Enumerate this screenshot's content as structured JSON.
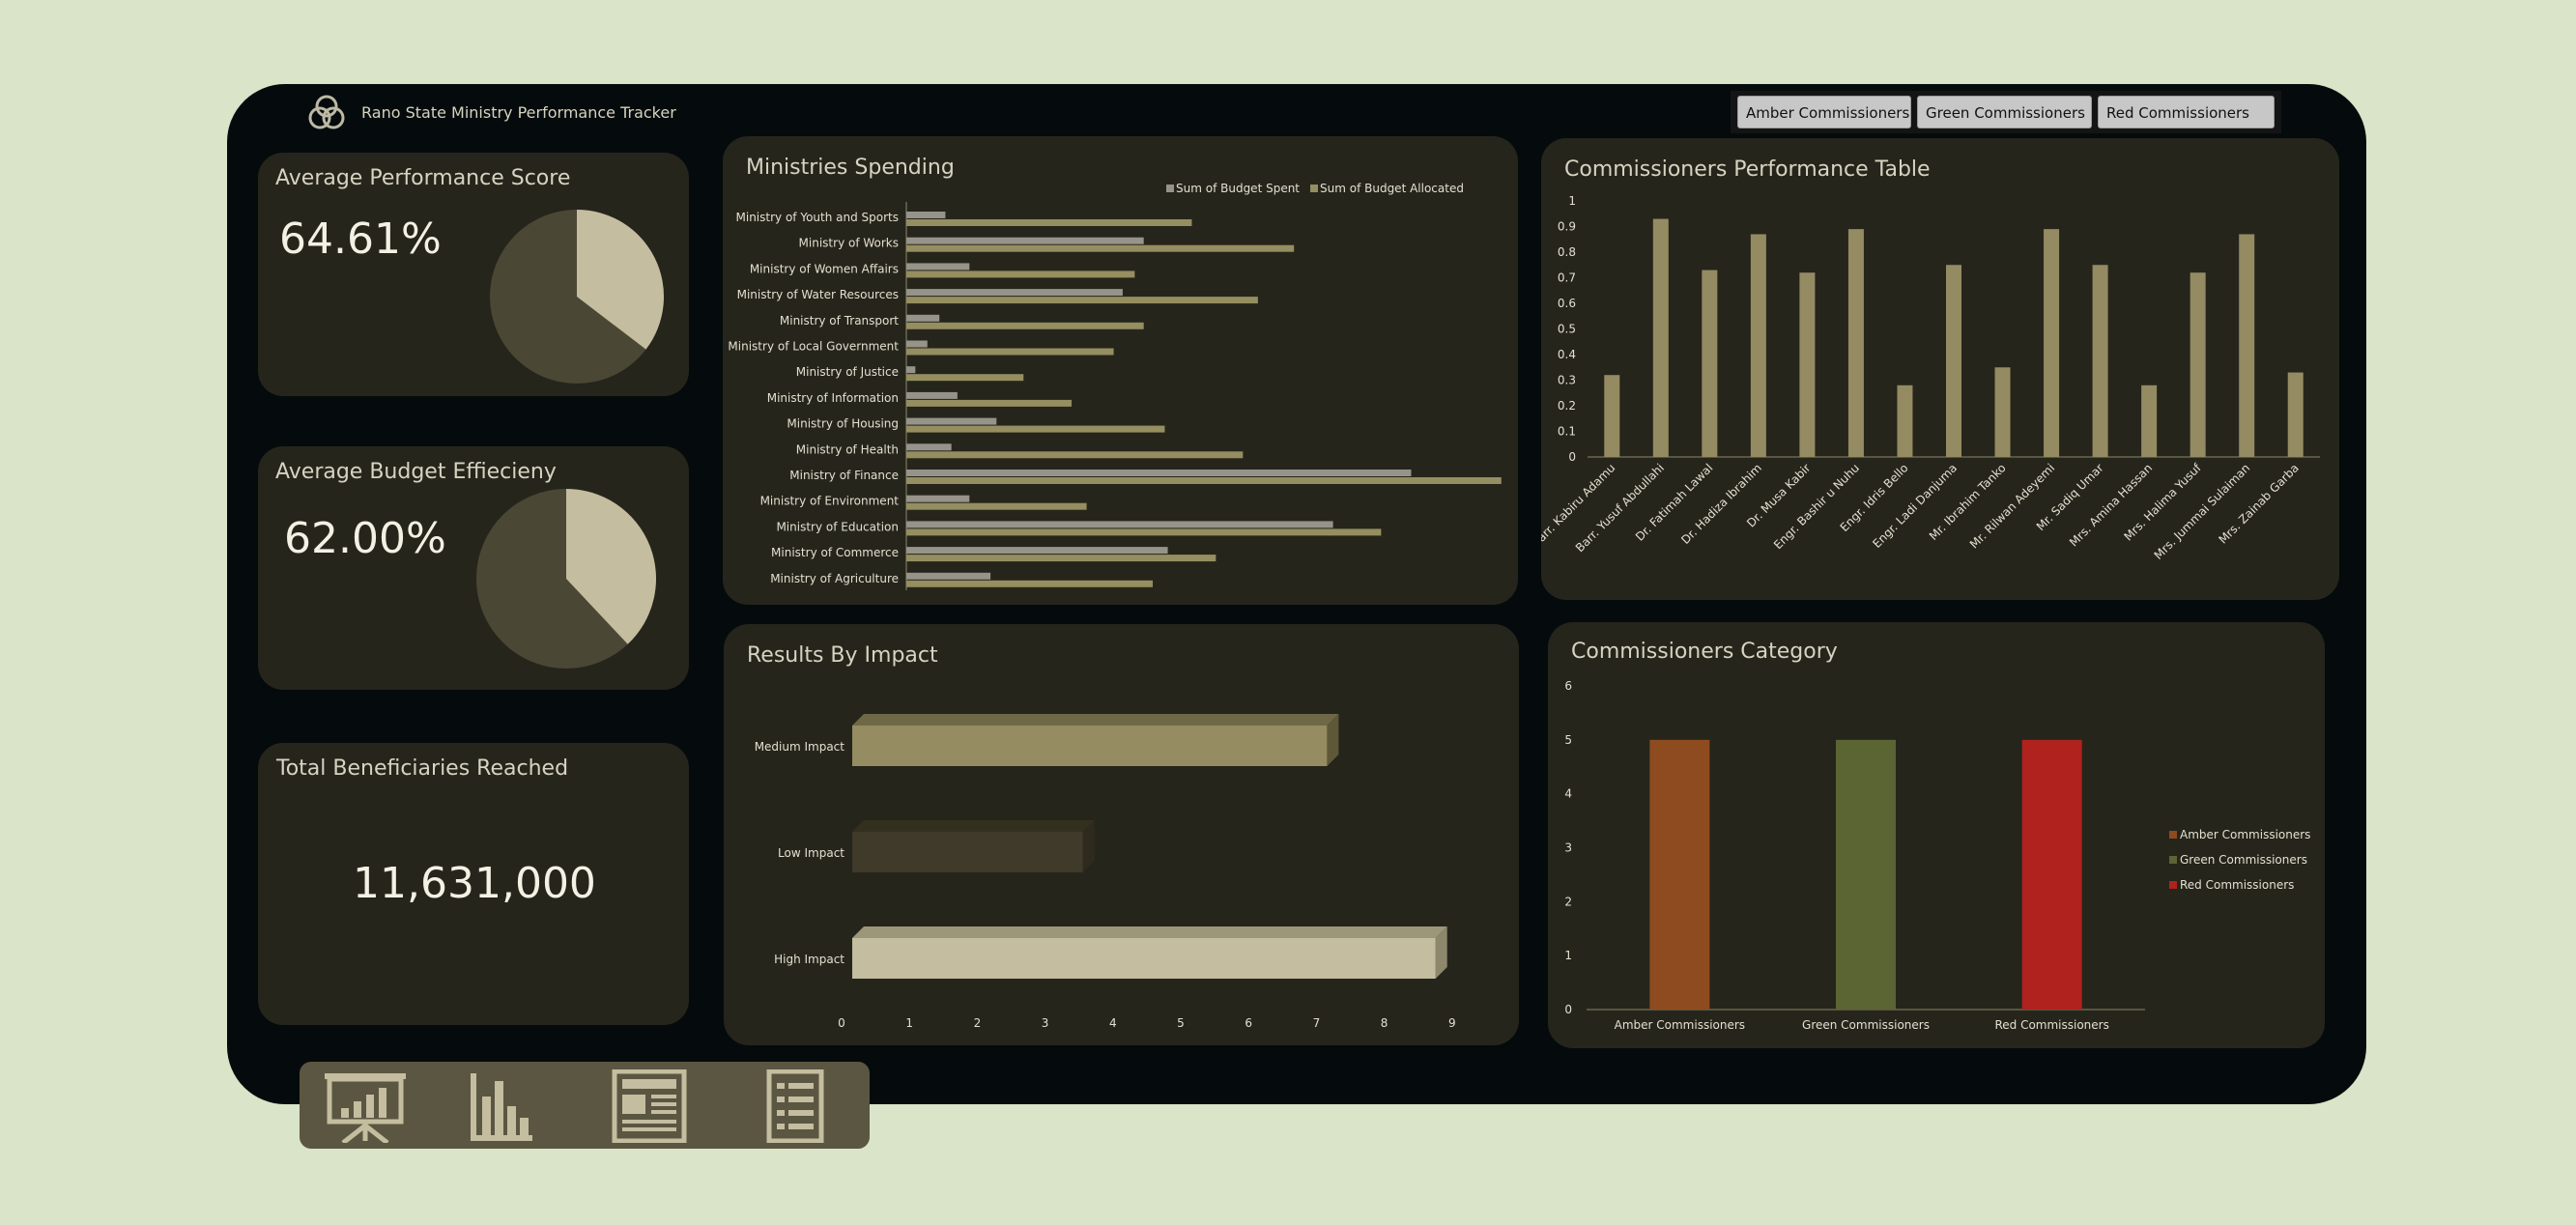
{
  "app": {
    "title": "Rano State Ministry Performance Tracker",
    "logo_icon": "three-circles-logo-icon"
  },
  "slicers": [
    {
      "label": "Amber  Commissioners"
    },
    {
      "label": "Green Commissioners"
    },
    {
      "label": "Red  Commissioners"
    }
  ],
  "kpis": {
    "performance": {
      "title": "Average Performance Score",
      "value": "64.61%",
      "fraction": 0.6461
    },
    "budget": {
      "title": "Average Budget Effiecieny",
      "value": "62.00%",
      "fraction": 0.62
    },
    "beneficiaries": {
      "title": "Total Beneficiaries Reached",
      "value": "11,631,000"
    }
  },
  "colors": {
    "pie_main": "#4b4735",
    "pie_slice": "#c4bd9f",
    "spent": "#96938a",
    "allocated": "#958e60",
    "medium": "#958c61",
    "low": "#3f3a2a",
    "high": "#c4bd9f",
    "amber": "#8e4b1f",
    "green": "#5b6433",
    "red": "#b0221d",
    "perf_bar": "#948b62"
  },
  "nav": {
    "icons": [
      "presentation-chart-icon",
      "bar-chart-icon",
      "newspaper-icon",
      "list-document-icon"
    ]
  },
  "chart_data": [
    {
      "id": "ministries_spending",
      "type": "bar",
      "orientation": "horizontal",
      "title": "Ministries Spending",
      "categories": [
        "Ministry of Youth and Sports",
        "Ministry of Works",
        "Ministry of Women Affairs",
        "Ministry of Water Resources",
        "Ministry of Transport",
        "Ministry of Local Government",
        "Ministry of Justice",
        "Ministry of Information",
        "Ministry of Housing",
        "Ministry of Health",
        "Ministry of Finance",
        "Ministry of Environment",
        "Ministry of Education",
        "Ministry of Commerce",
        "Ministry of Agriculture"
      ],
      "series": [
        {
          "name": "Sum of Budget Spent",
          "values": [
            0.65,
            3.95,
            1.05,
            3.6,
            0.55,
            0.35,
            0.15,
            0.85,
            1.5,
            0.75,
            8.4,
            1.05,
            7.1,
            4.35,
            1.4
          ]
        },
        {
          "name": "Sum of Budget Allocated",
          "values": [
            4.75,
            6.45,
            3.8,
            5.85,
            3.95,
            3.45,
            1.95,
            2.75,
            4.3,
            5.6,
            9.9,
            3.0,
            7.9,
            5.15,
            4.1
          ]
        }
      ],
      "legend": "top-right",
      "xlim": [
        0,
        10
      ]
    },
    {
      "id": "commissioners_performance",
      "type": "bar",
      "title": "Commissioners Performance Table",
      "categories": [
        "Barr. Kabiru Adamu",
        "Barr. Yusuf Abdullahi",
        "Dr. Fatimah Lawal",
        "Dr. Hadiza Ibrahim",
        "Dr. Musa Kabir",
        "Engr. Bashir u Nuhu",
        "Engr. Idris Bello",
        "Engr. Ladi Danjuma",
        "Mr. Ibrahim Tanko",
        "Mr. Rilwan Adeyemi",
        "Mr. Sadiq Umar",
        "Mrs. Amina Hassan",
        "Mrs. Halima Yusuf",
        "Mrs. Jummai Sulaiman",
        "Mrs. Zainab Garba"
      ],
      "values": [
        0.32,
        0.93,
        0.73,
        0.87,
        0.72,
        0.89,
        0.28,
        0.75,
        0.35,
        0.89,
        0.75,
        0.28,
        0.72,
        0.87,
        0.33
      ],
      "ylim": [
        0,
        1
      ],
      "yticks": [
        "0",
        "0.1",
        "0.2",
        "0.3",
        "0.4",
        "0.5",
        "0.6",
        "0.7",
        "0.8",
        "0.9",
        "1"
      ]
    },
    {
      "id": "results_by_impact",
      "type": "bar",
      "orientation": "horizontal",
      "title": "Results By Impact",
      "categories": [
        "Medium Impact",
        "Low Impact",
        "High Impact"
      ],
      "values": [
        7,
        3.4,
        8.6
      ],
      "xlim": [
        0,
        9
      ],
      "xticks": [
        "0",
        "1",
        "2",
        "3",
        "4",
        "5",
        "6",
        "7",
        "8",
        "9"
      ]
    },
    {
      "id": "commissioners_category",
      "type": "bar",
      "title": "Commissioners Category",
      "categories": [
        "Amber Commissioners",
        "Green Commissioners",
        "Red Commissioners"
      ],
      "values": [
        5,
        5,
        5
      ],
      "ylim": [
        0,
        6
      ],
      "yticks": [
        "0",
        "1",
        "2",
        "3",
        "4",
        "5",
        "6"
      ],
      "legend": "right",
      "legend_entries": [
        "Amber Commissioners",
        "Green Commissioners",
        "Red Commissioners"
      ]
    }
  ]
}
